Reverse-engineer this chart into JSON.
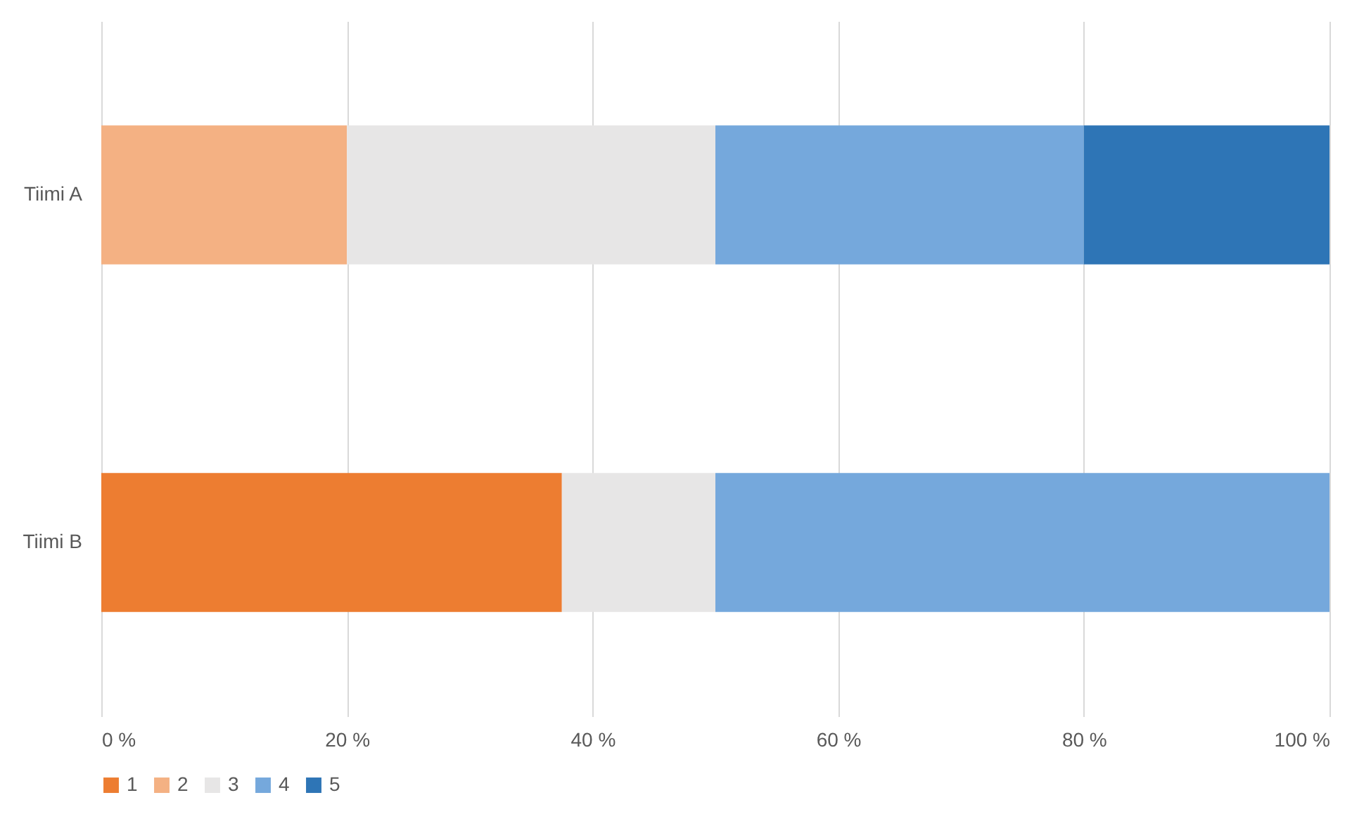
{
  "chart_data": {
    "type": "bar",
    "orientation": "horizontal",
    "stacked": true,
    "categories": [
      "Tiimi A",
      "Tiimi B"
    ],
    "series": [
      {
        "name": "1",
        "color": "#ed7d31",
        "values": [
          0,
          37.5
        ]
      },
      {
        "name": "2",
        "color": "#f4b183",
        "values": [
          20,
          0
        ]
      },
      {
        "name": "3",
        "color": "#e7e6e6",
        "values": [
          30,
          12.5
        ]
      },
      {
        "name": "4",
        "color": "#75a8dc",
        "values": [
          30,
          50
        ]
      },
      {
        "name": "5",
        "color": "#2e75b6",
        "values": [
          20,
          0
        ]
      }
    ],
    "xlim": [
      0,
      100
    ],
    "xticks": [
      {
        "value": 0,
        "label": "0 %"
      },
      {
        "value": 20,
        "label": "20 %"
      },
      {
        "value": 40,
        "label": "40 %"
      },
      {
        "value": 60,
        "label": "60 %"
      },
      {
        "value": 80,
        "label": "80 %"
      },
      {
        "value": 100,
        "label": "100 %"
      }
    ],
    "grid": "x",
    "legend": "bottom"
  }
}
